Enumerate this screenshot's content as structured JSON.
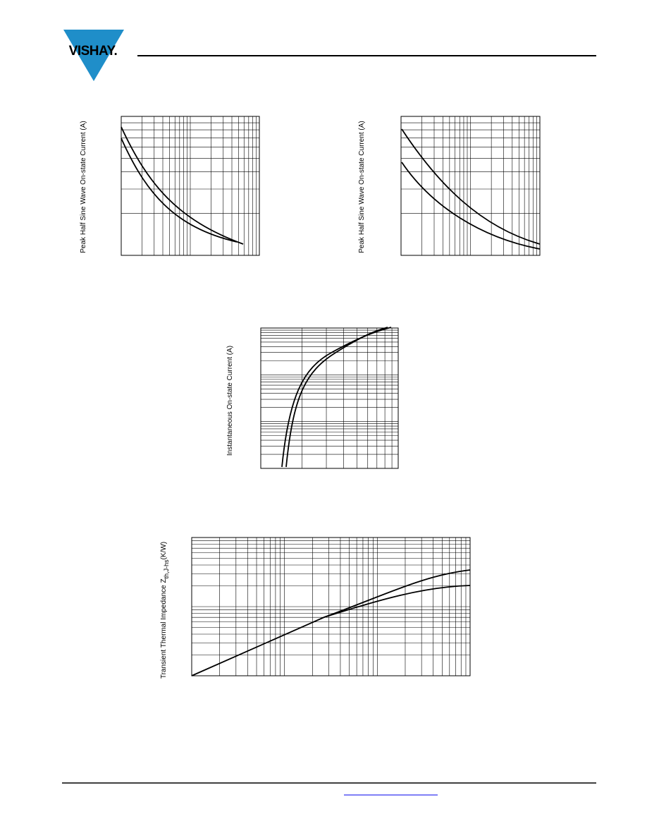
{
  "header": {
    "logo": "VISHAY."
  },
  "charts": [
    {
      "y_label": "Peak Half Sine Wave On-state Current (A)"
    },
    {
      "y_label": "Peak Half Sine Wave On-state Current (A)"
    },
    {
      "y_label": "Instantaneous On-state Current (A)"
    },
    {
      "y_label": "Transient Thermal Impedance Z",
      "y_label_sub": "th,J-hs",
      "y_label_unit": "(K/W)"
    }
  ]
}
